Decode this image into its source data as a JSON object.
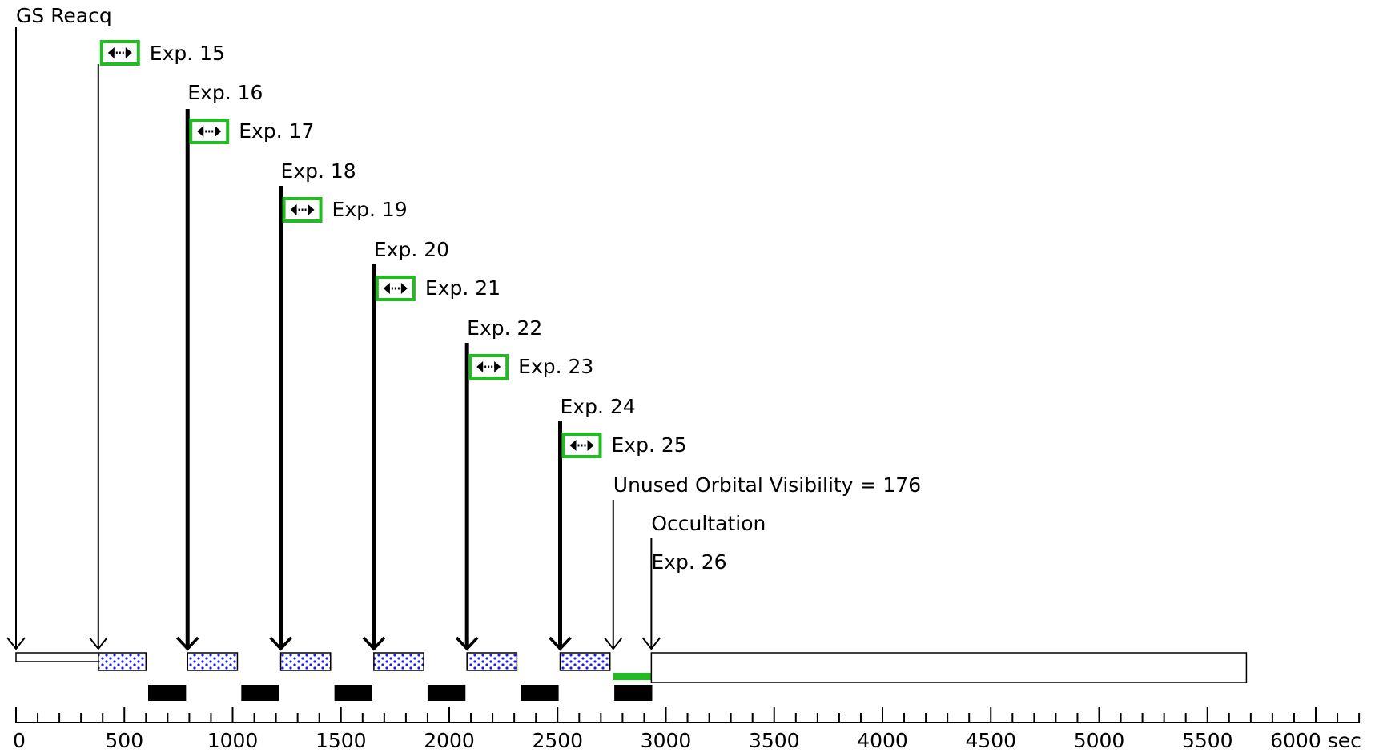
{
  "timeline": {
    "axis": {
      "max": 6200,
      "ticks": [
        {
          "v": 0,
          "label": "0"
        },
        {
          "v": 500,
          "label": "500"
        },
        {
          "v": 1000,
          "label": "1000"
        },
        {
          "v": 1500,
          "label": "1500"
        },
        {
          "v": 2000,
          "label": "2000"
        },
        {
          "v": 2500,
          "label": "2500"
        },
        {
          "v": 3000,
          "label": "3000"
        },
        {
          "v": 3500,
          "label": "3500"
        },
        {
          "v": 4000,
          "label": "4000"
        },
        {
          "v": 4500,
          "label": "4500"
        },
        {
          "v": 5000,
          "label": "5000"
        },
        {
          "v": 5500,
          "label": "5500"
        },
        {
          "v": 6000,
          "label": "6000 sec"
        }
      ],
      "minor_step": 100
    },
    "events": [
      {
        "name": "gs-reacq",
        "label": "GS Reacq",
        "t": 0,
        "badge": false,
        "thick": false
      },
      {
        "name": "exp-15",
        "label": "Exp. 15",
        "t": 380,
        "badge": true,
        "thick": false
      },
      {
        "name": "exp-16-17",
        "label": "Exp. 16",
        "label2": "Exp. 17",
        "t": 792,
        "badge": true,
        "thick": true
      },
      {
        "name": "exp-18-19",
        "label": "Exp. 18",
        "label2": "Exp. 19",
        "t": 1222,
        "badge": true,
        "thick": true
      },
      {
        "name": "exp-20-21",
        "label": "Exp. 20",
        "label2": "Exp. 21",
        "t": 1652,
        "badge": true,
        "thick": true
      },
      {
        "name": "exp-22-23",
        "label": "Exp. 22",
        "label2": "Exp. 23",
        "t": 2082,
        "badge": true,
        "thick": true
      },
      {
        "name": "exp-24-25",
        "label": "Exp. 24",
        "label2": "Exp. 25",
        "t": 2512,
        "badge": true,
        "thick": true
      },
      {
        "name": "unused-visibility",
        "label": "Unused Orbital Visibility = 176",
        "t": 2757,
        "badge": false,
        "thick": false
      },
      {
        "name": "occultation",
        "label": "Occultation",
        "label2": "Exp. 26",
        "t": 2933,
        "badge": false,
        "thick": false
      }
    ],
    "exposures": [
      {
        "start": 380,
        "end": 600
      },
      {
        "start": 792,
        "end": 1022
      },
      {
        "start": 1222,
        "end": 1452
      },
      {
        "start": 1652,
        "end": 1882
      },
      {
        "start": 2082,
        "end": 2312
      },
      {
        "start": 2512,
        "end": 2742
      }
    ],
    "readouts": [
      {
        "start": 610,
        "end": 785
      },
      {
        "start": 1040,
        "end": 1215
      },
      {
        "start": 1470,
        "end": 1645
      },
      {
        "start": 1900,
        "end": 2075
      },
      {
        "start": 2330,
        "end": 2505
      },
      {
        "start": 2762,
        "end": 2937
      }
    ],
    "gs_bar": {
      "start": 0,
      "end": 380
    },
    "unused_bar": {
      "start": 2757,
      "end": 2933
    },
    "occultation_bar": {
      "start": 2933,
      "end": 5680
    },
    "colors": {
      "badge": "#22bb22",
      "exposure_fill": "#ffffff",
      "exposure_dots": "#1a1aff",
      "unused": "#22bb22",
      "readout": "#000000",
      "axis": "#000000"
    }
  }
}
